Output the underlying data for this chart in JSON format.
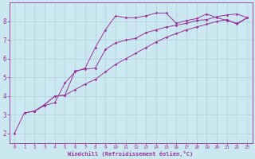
{
  "xlabel": "Windchill (Refroidissement éolien,°C)",
  "bg_color": "#cbe8f0",
  "grid_color": "#b0d0dc",
  "line_color": "#993399",
  "xlim": [
    -0.5,
    23.5
  ],
  "ylim": [
    1.5,
    9.0
  ],
  "xticks": [
    0,
    1,
    2,
    3,
    4,
    5,
    6,
    7,
    8,
    9,
    10,
    11,
    12,
    13,
    14,
    15,
    16,
    17,
    18,
    19,
    20,
    21,
    22,
    23
  ],
  "yticks": [
    2,
    3,
    4,
    5,
    6,
    7,
    8
  ],
  "line1_x": [
    0,
    1,
    2,
    3,
    4,
    5,
    6,
    7,
    8,
    9,
    10,
    11,
    12,
    13,
    14,
    15,
    16,
    17,
    18,
    19,
    20,
    21,
    22,
    23
  ],
  "line1_y": [
    2.0,
    3.1,
    3.2,
    3.5,
    3.65,
    4.7,
    5.3,
    5.5,
    6.6,
    7.55,
    8.3,
    8.2,
    8.2,
    8.3,
    8.45,
    8.45,
    7.9,
    8.05,
    8.15,
    8.4,
    8.2,
    8.05,
    7.9,
    8.2
  ],
  "line2_x": [
    1,
    2,
    3,
    4,
    5,
    6,
    7,
    8,
    9,
    10,
    11,
    12,
    13,
    14,
    15,
    16,
    17,
    18,
    19,
    20,
    21,
    22,
    23
  ],
  "line2_y": [
    3.1,
    3.2,
    3.55,
    4.0,
    4.05,
    4.35,
    4.65,
    4.9,
    5.3,
    5.7,
    6.0,
    6.3,
    6.6,
    6.9,
    7.15,
    7.35,
    7.55,
    7.7,
    7.85,
    8.0,
    8.1,
    7.85,
    8.2
  ],
  "line3_x": [
    2,
    3,
    4,
    5,
    6,
    7,
    8,
    9,
    10,
    11,
    12,
    13,
    14,
    15,
    16,
    17,
    18,
    19,
    20,
    21,
    22,
    23
  ],
  "line3_y": [
    3.2,
    3.55,
    4.0,
    4.05,
    5.35,
    5.45,
    5.5,
    6.5,
    6.85,
    7.0,
    7.1,
    7.4,
    7.55,
    7.7,
    7.8,
    7.9,
    8.05,
    8.1,
    8.25,
    8.35,
    8.4,
    8.2
  ]
}
